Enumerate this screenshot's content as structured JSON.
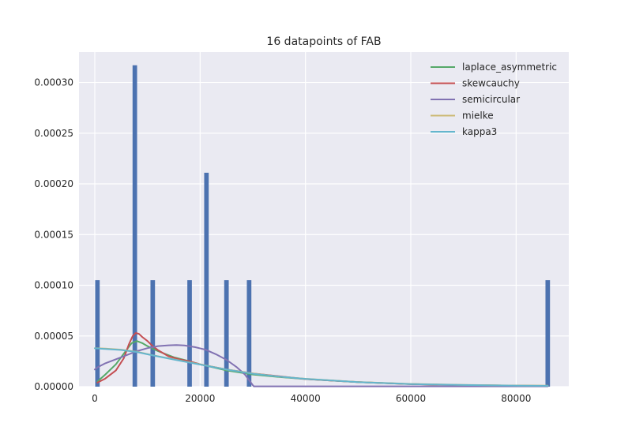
{
  "chart_data": {
    "type": "bar",
    "title": "16 datapoints of FAB",
    "xlabel": "",
    "ylabel": "",
    "xlim": [
      -3000,
      90000
    ],
    "ylim": [
      0,
      0.00033
    ],
    "grid": true,
    "legend_position": "top-right",
    "x_ticks": [
      0,
      20000,
      40000,
      60000,
      80000
    ],
    "x_tick_labels": [
      "0",
      "20000",
      "40000",
      "60000",
      "80000"
    ],
    "y_ticks": [
      0,
      5e-05,
      0.0001,
      0.00015,
      0.0002,
      0.00025,
      0.0003
    ],
    "y_tick_labels": [
      "0.00000",
      "0.00005",
      "0.00010",
      "0.00015",
      "0.00020",
      "0.00025",
      "0.00030"
    ],
    "histogram": {
      "color": "#4c72b0",
      "bin_width": 860,
      "bins": [
        {
          "x": 500,
          "height": 0.000105
        },
        {
          "x": 7600,
          "height": 0.000317
        },
        {
          "x": 11000,
          "height": 0.000105
        },
        {
          "x": 18000,
          "height": 0.000105
        },
        {
          "x": 21200,
          "height": 0.000211
        },
        {
          "x": 25000,
          "height": 0.000105
        },
        {
          "x": 29300,
          "height": 0.000105
        },
        {
          "x": 86000,
          "height": 0.000105
        }
      ]
    },
    "series": [
      {
        "name": "laplace_asymmetric",
        "color": "#55a868",
        "x": [
          500,
          2000,
          4000,
          6000,
          7000,
          8000,
          9000,
          10000,
          12000,
          15000,
          18000,
          20000,
          25000,
          30000,
          35000,
          40000,
          50000,
          60000,
          70000,
          80000,
          86000
        ],
        "y": [
          5e-06,
          1.2e-05,
          2.2e-05,
          3.6e-05,
          4.3e-05,
          4.5e-05,
          4.3e-05,
          4e-05,
          3.5e-05,
          2.9e-05,
          2.5e-05,
          2.2e-05,
          1.6e-05,
          1.2e-05,
          9.5e-06,
          7.5e-06,
          4.5e-06,
          2.5e-06,
          1.5e-06,
          1e-06,
          8e-07
        ]
      },
      {
        "name": "skewcauchy",
        "color": "#c44e52",
        "x": [
          500,
          2000,
          4000,
          5500,
          6500,
          7200,
          7800,
          8400,
          9000,
          10000,
          11000,
          12000,
          14000,
          16000,
          18000,
          20000,
          25000,
          30000,
          40000,
          50000,
          60000,
          70000,
          80000,
          86000
        ],
        "y": [
          4e-06,
          8e-06,
          1.6e-05,
          2.8e-05,
          4.2e-05,
          5e-05,
          5.3e-05,
          5.2e-05,
          4.9e-05,
          4.5e-05,
          4e-05,
          3.6e-05,
          3e-05,
          2.7e-05,
          2.5e-05,
          2.2e-05,
          1.7e-05,
          1.3e-05,
          7.5e-06,
          4.5e-06,
          2.5e-06,
          1.5e-06,
          1e-06,
          8e-07
        ]
      },
      {
        "name": "semicircular",
        "color": "#8172b2",
        "x": [
          0,
          500,
          2000,
          4000,
          6000,
          8000,
          10000,
          12000,
          14000,
          15500,
          17000,
          19000,
          21000,
          23000,
          25000,
          27000,
          28500,
          29500,
          30000,
          30200,
          86000
        ],
        "y": [
          1.7e-05,
          1.9e-05,
          2.3e-05,
          2.7e-05,
          3.1e-05,
          3.5e-05,
          3.8e-05,
          4e-05,
          4.08e-05,
          4.1e-05,
          4.06e-05,
          3.9e-05,
          3.65e-05,
          3.2e-05,
          2.65e-05,
          1.9e-05,
          1.2e-05,
          5e-06,
          1.5e-06,
          3e-07,
          3e-07
        ]
      },
      {
        "name": "mielke",
        "color": "#ccb974",
        "x": [
          0,
          2000,
          5000,
          8000,
          11000,
          15000,
          20000,
          25000,
          30000,
          35000,
          40000,
          50000,
          60000,
          70000,
          80000,
          86000
        ],
        "y": [
          3.8e-05,
          3.75e-05,
          3.65e-05,
          3.45e-05,
          3.1e-05,
          2.7e-05,
          2.2e-05,
          1.7e-05,
          1.3e-05,
          1e-05,
          7.8e-06,
          4.6e-06,
          2.7e-06,
          1.7e-06,
          1.1e-06,
          9e-07
        ]
      },
      {
        "name": "kappa3",
        "color": "#64b5cd",
        "x": [
          0,
          2000,
          5000,
          8000,
          11000,
          15000,
          20000,
          25000,
          30000,
          35000,
          40000,
          50000,
          60000,
          70000,
          80000,
          86000
        ],
        "y": [
          3.78e-05,
          3.72e-05,
          3.62e-05,
          3.42e-05,
          3.08e-05,
          2.68e-05,
          2.18e-05,
          1.68e-05,
          1.28e-05,
          9.9e-06,
          7.7e-06,
          4.5e-06,
          2.6e-06,
          1.6e-06,
          1e-06,
          8e-07
        ]
      }
    ]
  }
}
